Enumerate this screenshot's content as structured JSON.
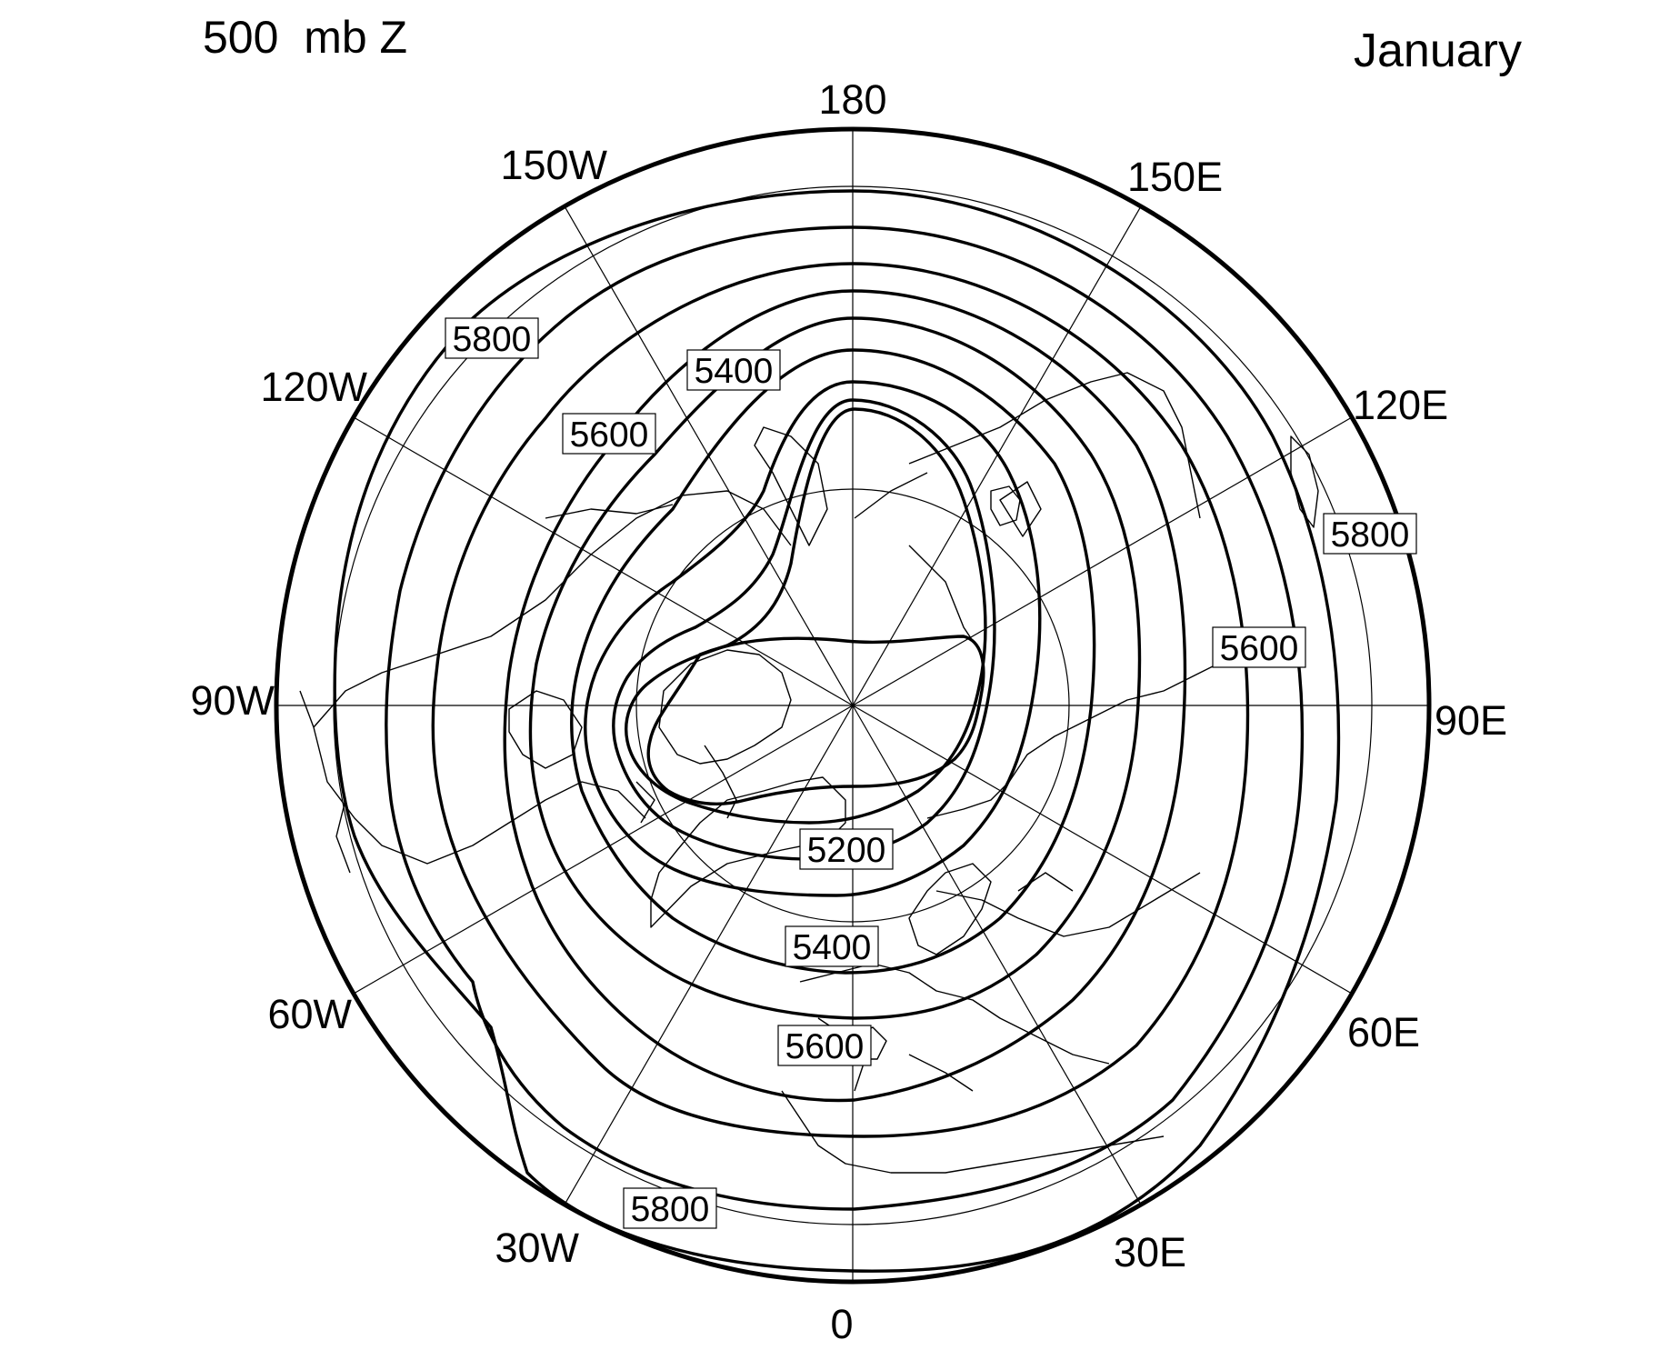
{
  "map": {
    "title_left": "500  mb Z",
    "title_right": "January",
    "projection": "north polar stereographic",
    "longitude_labels": [
      {
        "lon": "180",
        "text": "180"
      },
      {
        "lon": "150E",
        "text": "150E"
      },
      {
        "lon": "120E",
        "text": "120E"
      },
      {
        "lon": "90E",
        "text": "90E"
      },
      {
        "lon": "60E",
        "text": "60E"
      },
      {
        "lon": "30E",
        "text": "30E"
      },
      {
        "lon": "0",
        "text": "0"
      },
      {
        "lon": "30W",
        "text": "30W"
      },
      {
        "lon": "60W",
        "text": "60W"
      },
      {
        "lon": "90W",
        "text": "90W"
      },
      {
        "lon": "120W",
        "text": "120W"
      },
      {
        "lon": "150W",
        "text": "150W"
      }
    ],
    "contour_values": [
      5200,
      5300,
      5400,
      5500,
      5600,
      5700,
      5800
    ],
    "contour_labels": [
      {
        "value": "5800",
        "where": "upper-left"
      },
      {
        "value": "5400",
        "where": "upper-left inner"
      },
      {
        "value": "5600",
        "where": "left"
      },
      {
        "value": "5800",
        "where": "right"
      },
      {
        "value": "5600",
        "where": "right"
      },
      {
        "value": "5200",
        "where": "center-lower"
      },
      {
        "value": "5400",
        "where": "lower"
      },
      {
        "value": "5600",
        "where": "lower"
      },
      {
        "value": "5800",
        "where": "bottom-left"
      }
    ],
    "colors": {
      "line": "#000000",
      "background": "#ffffff"
    }
  }
}
